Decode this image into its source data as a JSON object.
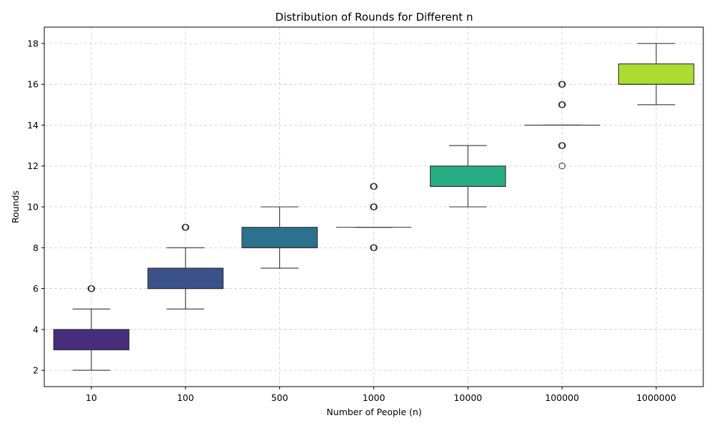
{
  "chart_data": {
    "type": "box",
    "title": "Distribution of Rounds for Different n",
    "xlabel": "Number of People (n)",
    "ylabel": "Rounds",
    "ylim": [
      1.2,
      18.8
    ],
    "yticks": [
      2,
      4,
      6,
      8,
      10,
      12,
      14,
      16,
      18
    ],
    "grid": true,
    "categories": [
      "10",
      "100",
      "500",
      "1000",
      "10000",
      "100000",
      "1000000"
    ],
    "boxes": [
      {
        "category": "10",
        "whisker_low": 2,
        "q1": 3,
        "median": 3,
        "q3": 4,
        "whisker_high": 5,
        "outliers": [
          6
        ],
        "color": "#472d7b"
      },
      {
        "category": "100",
        "whisker_low": 5,
        "q1": 6,
        "median": 6,
        "q3": 7,
        "whisker_high": 8,
        "outliers": [
          9
        ],
        "color": "#3b518b"
      },
      {
        "category": "500",
        "whisker_low": 7,
        "q1": 8,
        "median": 8,
        "q3": 9,
        "whisker_high": 10,
        "outliers": [],
        "color": "#2c718e"
      },
      {
        "category": "1000",
        "whisker_low": 9,
        "q1": 9,
        "median": 9,
        "q3": 9,
        "whisker_high": 9,
        "outliers": [
          8,
          10,
          11
        ],
        "color": "#21918c"
      },
      {
        "category": "10000",
        "whisker_low": 10,
        "q1": 11,
        "median": 11,
        "q3": 12,
        "whisker_high": 13,
        "outliers": [],
        "color": "#27ad81"
      },
      {
        "category": "100000",
        "whisker_low": 14,
        "q1": 14,
        "median": 14,
        "q3": 14,
        "whisker_high": 14,
        "outliers": [
          12,
          13,
          15,
          16
        ],
        "color": "#5cc863"
      },
      {
        "category": "1000000",
        "whisker_low": 15,
        "q1": 16,
        "median": 16,
        "q3": 17,
        "whisker_high": 18,
        "outliers": [],
        "color": "#aadc32"
      }
    ]
  }
}
